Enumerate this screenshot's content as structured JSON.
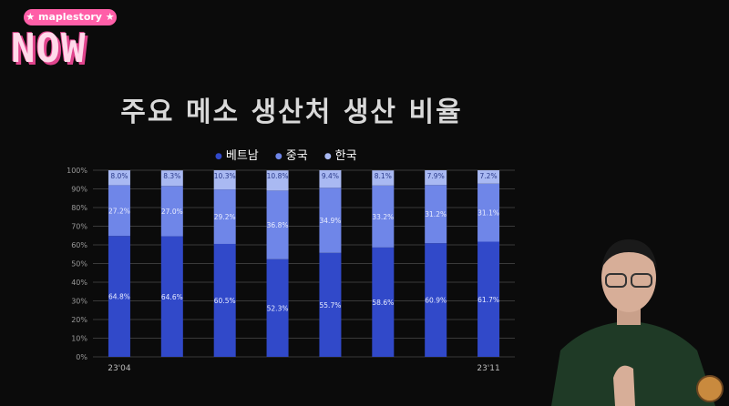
{
  "logo": {
    "small": "★ maplestory ★",
    "big": "NOW"
  },
  "title": "주요 메소 생산처 생산 비율",
  "legend": [
    {
      "label": "베트남",
      "color": "#3149c9"
    },
    {
      "label": "중국",
      "color": "#6f86e8"
    },
    {
      "label": "한국",
      "color": "#a9b9f2"
    }
  ],
  "chart_data": {
    "type": "bar",
    "stacked": true,
    "categories": [
      "23'04",
      "",
      "",
      "",
      "",
      "",
      "",
      "23'11"
    ],
    "series": [
      {
        "name": "베트남",
        "values": [
          64.8,
          64.6,
          60.5,
          52.3,
          55.7,
          58.6,
          60.9,
          61.7
        ],
        "labels": [
          "64.8%",
          "64.6%",
          "60.5%",
          "52.3%",
          "55.7%",
          "58.6%",
          "60.9%",
          "61.7%"
        ],
        "color": "#3149c9"
      },
      {
        "name": "중국",
        "values": [
          27.2,
          27.0,
          29.2,
          36.8,
          34.9,
          33.2,
          31.2,
          31.1
        ],
        "labels": [
          "27.2%",
          "27.0%",
          "29.2%",
          "36.8%",
          "34.9%",
          "33.2%",
          "31.2%",
          "31.1%"
        ],
        "color": "#6f86e8"
      },
      {
        "name": "한국",
        "values": [
          8.0,
          8.3,
          10.3,
          10.8,
          9.4,
          8.1,
          7.9,
          7.2
        ],
        "labels": [
          "8.0%",
          "8.3%",
          "10.3%",
          "10.8%",
          "9.4%",
          "8.1%",
          "7.9%",
          "7.2%"
        ],
        "color": "#a9b9f2"
      }
    ],
    "y_ticks": [
      "0%",
      "10%",
      "20%",
      "30%",
      "40%",
      "50%",
      "60%",
      "70%",
      "80%",
      "90%",
      "100%"
    ],
    "ylim": [
      0,
      100
    ],
    "grid": true,
    "legend_position": "top"
  }
}
